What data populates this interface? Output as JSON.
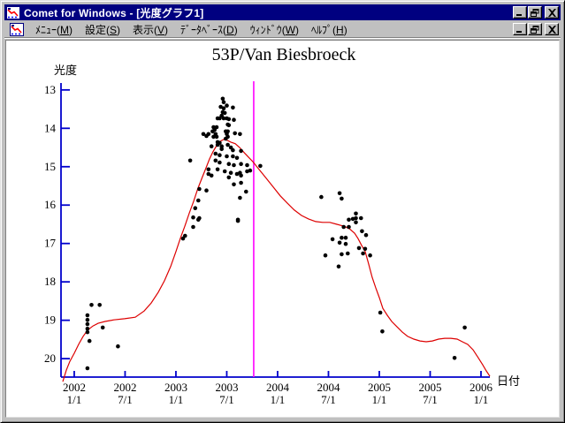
{
  "window": {
    "title": "Comet for Windows - [光度グラフ1]",
    "title_bar_color": "#000080",
    "frame_color": "#c0c0c0",
    "controls": [
      "minimize",
      "restore",
      "close"
    ]
  },
  "menu_bar": {
    "items": [
      {
        "name": "menu",
        "label": "ﾒﾆｭｰ",
        "mnemonic": "M"
      },
      {
        "name": "settings",
        "label": "設定",
        "mnemonic": "S"
      },
      {
        "name": "view",
        "label": "表示",
        "mnemonic": "V"
      },
      {
        "name": "database",
        "label": "ﾃﾞｰﾀﾍﾞｰｽ",
        "mnemonic": "D"
      },
      {
        "name": "window",
        "label": "ｳｨﾝﾄﾞｳ",
        "mnemonic": "W"
      },
      {
        "name": "help",
        "label": "ﾍﾙﾌﾟ",
        "mnemonic": "H"
      }
    ],
    "controls": [
      "minimize",
      "restore",
      "close"
    ]
  },
  "chart_data": {
    "type": "scatter",
    "title": "53P/Van Biesbroeck",
    "xlabel": "日付",
    "ylabel": "光度",
    "xlim": [
      2001.87,
      2006.087
    ],
    "ylim": [
      12.82,
      20.48
    ],
    "y_inverted": true,
    "axis_color": "#0000cc",
    "point_color": "#000000",
    "curve_color": "#dd0000",
    "marker_line": {
      "x": 2003.765,
      "color": "#ff00ff"
    },
    "x_ticks": [
      {
        "value": 2002.0,
        "line1": "2002",
        "line2": "1/1"
      },
      {
        "value": 2002.5,
        "line1": "2002",
        "line2": "7/1"
      },
      {
        "value": 2003.0,
        "line1": "2003",
        "line2": "1/1"
      },
      {
        "value": 2003.5,
        "line1": "2003",
        "line2": "7/1"
      },
      {
        "value": 2004.0,
        "line1": "2004",
        "line2": "1/1"
      },
      {
        "value": 2004.5,
        "line1": "2004",
        "line2": "7/1"
      },
      {
        "value": 2005.0,
        "line1": "2005",
        "line2": "1/1"
      },
      {
        "value": 2005.5,
        "line1": "2005",
        "line2": "7/1"
      },
      {
        "value": 2006.0,
        "line1": "2006",
        "line2": "1/1"
      }
    ],
    "y_ticks": [
      13,
      14,
      15,
      16,
      17,
      18,
      19,
      20
    ],
    "observations": [
      [
        2002.17,
        18.6
      ],
      [
        2002.25,
        18.6
      ],
      [
        2002.13,
        18.87
      ],
      [
        2002.13,
        18.99
      ],
      [
        2002.13,
        19.1
      ],
      [
        2002.13,
        19.22
      ],
      [
        2002.13,
        19.31
      ],
      [
        2002.28,
        19.19
      ],
      [
        2002.15,
        19.54
      ],
      [
        2002.43,
        19.68
      ],
      [
        2002.13,
        20.25
      ],
      [
        2003.07,
        16.87
      ],
      [
        2003.09,
        16.8
      ],
      [
        2003.17,
        16.32
      ],
      [
        2003.22,
        16.38
      ],
      [
        2003.17,
        16.57
      ],
      [
        2003.23,
        16.34
      ],
      [
        2003.19,
        16.08
      ],
      [
        2003.22,
        15.88
      ],
      [
        2003.23,
        15.58
      ],
      [
        2003.3,
        15.62
      ],
      [
        2003.14,
        14.84
      ],
      [
        2003.46,
        13.23
      ],
      [
        2003.47,
        13.32
      ],
      [
        2003.5,
        13.41
      ],
      [
        2003.44,
        13.44
      ],
      [
        2003.47,
        13.48
      ],
      [
        2003.56,
        13.46
      ],
      [
        2003.46,
        13.58
      ],
      [
        2003.48,
        13.6
      ],
      [
        2003.45,
        13.67
      ],
      [
        2003.41,
        13.74
      ],
      [
        2003.43,
        13.74
      ],
      [
        2003.47,
        13.74
      ],
      [
        2003.5,
        13.74
      ],
      [
        2003.52,
        13.76
      ],
      [
        2003.57,
        13.78
      ],
      [
        2003.51,
        13.9
      ],
      [
        2003.52,
        13.92
      ],
      [
        2003.37,
        13.97
      ],
      [
        2003.4,
        13.97
      ],
      [
        2003.38,
        14.04
      ],
      [
        2003.36,
        14.08
      ],
      [
        2003.27,
        14.15
      ],
      [
        2003.32,
        14.15
      ],
      [
        2003.39,
        14.15
      ],
      [
        2003.37,
        14.22
      ],
      [
        2003.4,
        14.22
      ],
      [
        2003.49,
        14.08
      ],
      [
        2003.51,
        14.08
      ],
      [
        2003.5,
        14.15
      ],
      [
        2003.51,
        14.22
      ],
      [
        2003.49,
        14.27
      ],
      [
        2003.58,
        14.13
      ],
      [
        2003.63,
        14.15
      ],
      [
        2003.41,
        14.36
      ],
      [
        2003.43,
        14.38
      ],
      [
        2003.51,
        14.43
      ],
      [
        2003.45,
        14.47
      ],
      [
        2003.54,
        14.5
      ],
      [
        2003.3,
        14.2
      ],
      [
        2003.41,
        14.43
      ],
      [
        2003.35,
        14.47
      ],
      [
        2003.45,
        14.54
      ],
      [
        2003.56,
        14.57
      ],
      [
        2003.39,
        14.66
      ],
      [
        2003.43,
        14.7
      ],
      [
        2003.5,
        14.73
      ],
      [
        2003.56,
        14.73
      ],
      [
        2003.6,
        14.77
      ],
      [
        2003.64,
        14.59
      ],
      [
        2003.39,
        14.84
      ],
      [
        2003.43,
        14.89
      ],
      [
        2003.52,
        14.93
      ],
      [
        2003.57,
        14.96
      ],
      [
        2003.64,
        14.93
      ],
      [
        2003.7,
        14.96
      ],
      [
        2003.32,
        15.07
      ],
      [
        2003.41,
        15.07
      ],
      [
        2003.48,
        15.12
      ],
      [
        2003.54,
        15.16
      ],
      [
        2003.63,
        15.16
      ],
      [
        2003.7,
        15.12
      ],
      [
        2003.32,
        15.19
      ],
      [
        2003.35,
        15.23
      ],
      [
        2003.52,
        15.28
      ],
      [
        2003.6,
        15.19
      ],
      [
        2003.64,
        15.23
      ],
      [
        2003.57,
        15.46
      ],
      [
        2003.64,
        15.42
      ],
      [
        2003.69,
        15.65
      ],
      [
        2003.63,
        15.81
      ],
      [
        2003.61,
        16.38
      ],
      [
        2003.61,
        16.41
      ],
      [
        2003.73,
        15.1
      ],
      [
        2003.83,
        14.98
      ],
      [
        2004.43,
        15.79
      ],
      [
        2004.61,
        15.69
      ],
      [
        2004.63,
        15.83
      ],
      [
        2004.77,
        16.22
      ],
      [
        2004.77,
        16.34
      ],
      [
        2004.74,
        16.36
      ],
      [
        2004.82,
        16.34
      ],
      [
        2004.77,
        16.45
      ],
      [
        2004.7,
        16.38
      ],
      [
        2004.65,
        16.57
      ],
      [
        2004.7,
        16.57
      ],
      [
        2004.83,
        16.68
      ],
      [
        2004.87,
        16.78
      ],
      [
        2004.54,
        16.89
      ],
      [
        2004.63,
        16.85
      ],
      [
        2004.67,
        16.85
      ],
      [
        2004.61,
        16.98
      ],
      [
        2004.67,
        17.01
      ],
      [
        2004.8,
        17.12
      ],
      [
        2004.86,
        17.14
      ],
      [
        2004.47,
        17.31
      ],
      [
        2004.63,
        17.28
      ],
      [
        2004.69,
        17.26
      ],
      [
        2004.91,
        17.31
      ],
      [
        2004.6,
        17.6
      ],
      [
        2004.84,
        17.26
      ],
      [
        2005.01,
        18.8
      ],
      [
        2005.03,
        19.29
      ],
      [
        2005.84,
        19.19
      ],
      [
        2005.74,
        19.98
      ]
    ],
    "model_curve": [
      [
        2001.887,
        20.6
      ],
      [
        2001.922,
        20.3
      ],
      [
        2001.957,
        20.07
      ],
      [
        2002.0,
        19.86
      ],
      [
        2002.043,
        19.63
      ],
      [
        2002.087,
        19.42
      ],
      [
        2002.13,
        19.26
      ],
      [
        2002.183,
        19.15
      ],
      [
        2002.235,
        19.08
      ],
      [
        2002.304,
        19.03
      ],
      [
        2002.391,
        18.99
      ],
      [
        2002.496,
        18.96
      ],
      [
        2002.6,
        18.92
      ],
      [
        2002.687,
        18.76
      ],
      [
        2002.757,
        18.55
      ],
      [
        2002.826,
        18.27
      ],
      [
        2002.887,
        17.97
      ],
      [
        2002.948,
        17.6
      ],
      [
        2003.0,
        17.21
      ],
      [
        2003.043,
        16.87
      ],
      [
        2003.087,
        16.55
      ],
      [
        2003.13,
        16.22
      ],
      [
        2003.174,
        15.9
      ],
      [
        2003.217,
        15.56
      ],
      [
        2003.261,
        15.26
      ],
      [
        2003.296,
        15.03
      ],
      [
        2003.33,
        14.8
      ],
      [
        2003.365,
        14.61
      ],
      [
        2003.4,
        14.45
      ],
      [
        2003.435,
        14.34
      ],
      [
        2003.47,
        14.29
      ],
      [
        2003.504,
        14.31
      ],
      [
        2003.539,
        14.36
      ],
      [
        2003.583,
        14.4
      ],
      [
        2003.626,
        14.5
      ],
      [
        2003.67,
        14.63
      ],
      [
        2003.713,
        14.75
      ],
      [
        2003.757,
        14.87
      ],
      [
        2003.817,
        15.07
      ],
      [
        2003.887,
        15.3
      ],
      [
        2003.957,
        15.53
      ],
      [
        2004.026,
        15.76
      ],
      [
        2004.096,
        15.95
      ],
      [
        2004.165,
        16.13
      ],
      [
        2004.235,
        16.27
      ],
      [
        2004.304,
        16.36
      ],
      [
        2004.374,
        16.43
      ],
      [
        2004.443,
        16.45
      ],
      [
        2004.513,
        16.45
      ],
      [
        2004.583,
        16.5
      ],
      [
        2004.652,
        16.55
      ],
      [
        2004.704,
        16.61
      ],
      [
        2004.757,
        16.73
      ],
      [
        2004.791,
        16.87
      ],
      [
        2004.826,
        17.05
      ],
      [
        2004.861,
        17.21
      ],
      [
        2004.896,
        17.54
      ],
      [
        2004.93,
        17.88
      ],
      [
        2004.965,
        18.16
      ],
      [
        2005.0,
        18.41
      ],
      [
        2005.035,
        18.69
      ],
      [
        2005.078,
        18.87
      ],
      [
        2005.122,
        19.03
      ],
      [
        2005.174,
        19.17
      ],
      [
        2005.226,
        19.31
      ],
      [
        2005.278,
        19.42
      ],
      [
        2005.339,
        19.49
      ],
      [
        2005.4,
        19.54
      ],
      [
        2005.461,
        19.56
      ],
      [
        2005.522,
        19.54
      ],
      [
        2005.583,
        19.49
      ],
      [
        2005.643,
        19.47
      ],
      [
        2005.704,
        19.47
      ],
      [
        2005.765,
        19.49
      ],
      [
        2005.817,
        19.56
      ],
      [
        2005.87,
        19.63
      ],
      [
        2005.922,
        19.77
      ],
      [
        2005.974,
        19.98
      ],
      [
        2006.017,
        20.16
      ],
      [
        2006.052,
        20.32
      ],
      [
        2006.087,
        20.46
      ]
    ]
  }
}
